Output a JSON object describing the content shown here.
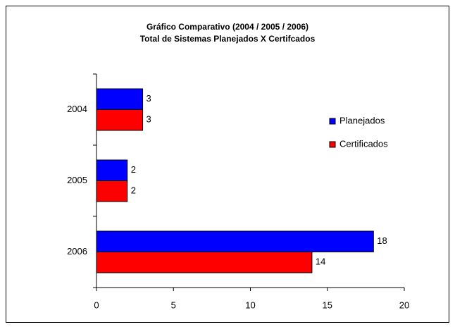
{
  "chart_data": {
    "type": "hbar",
    "title": "Gráfico Comparativo (2004 / 2005 / 2006)",
    "subtitle": "Total de Sistemas Planejados X Certifcados",
    "categories": [
      "2004",
      "2005",
      "2006"
    ],
    "series": [
      {
        "name": "Planejados",
        "color": "#0000ff",
        "values": [
          3,
          2,
          18
        ]
      },
      {
        "name": "Certificados",
        "color": "#ff0000",
        "values": [
          3,
          2,
          14
        ]
      }
    ],
    "xlim": [
      0,
      20
    ],
    "xticks": [
      0,
      5,
      10,
      15,
      20
    ],
    "legend": "right"
  }
}
